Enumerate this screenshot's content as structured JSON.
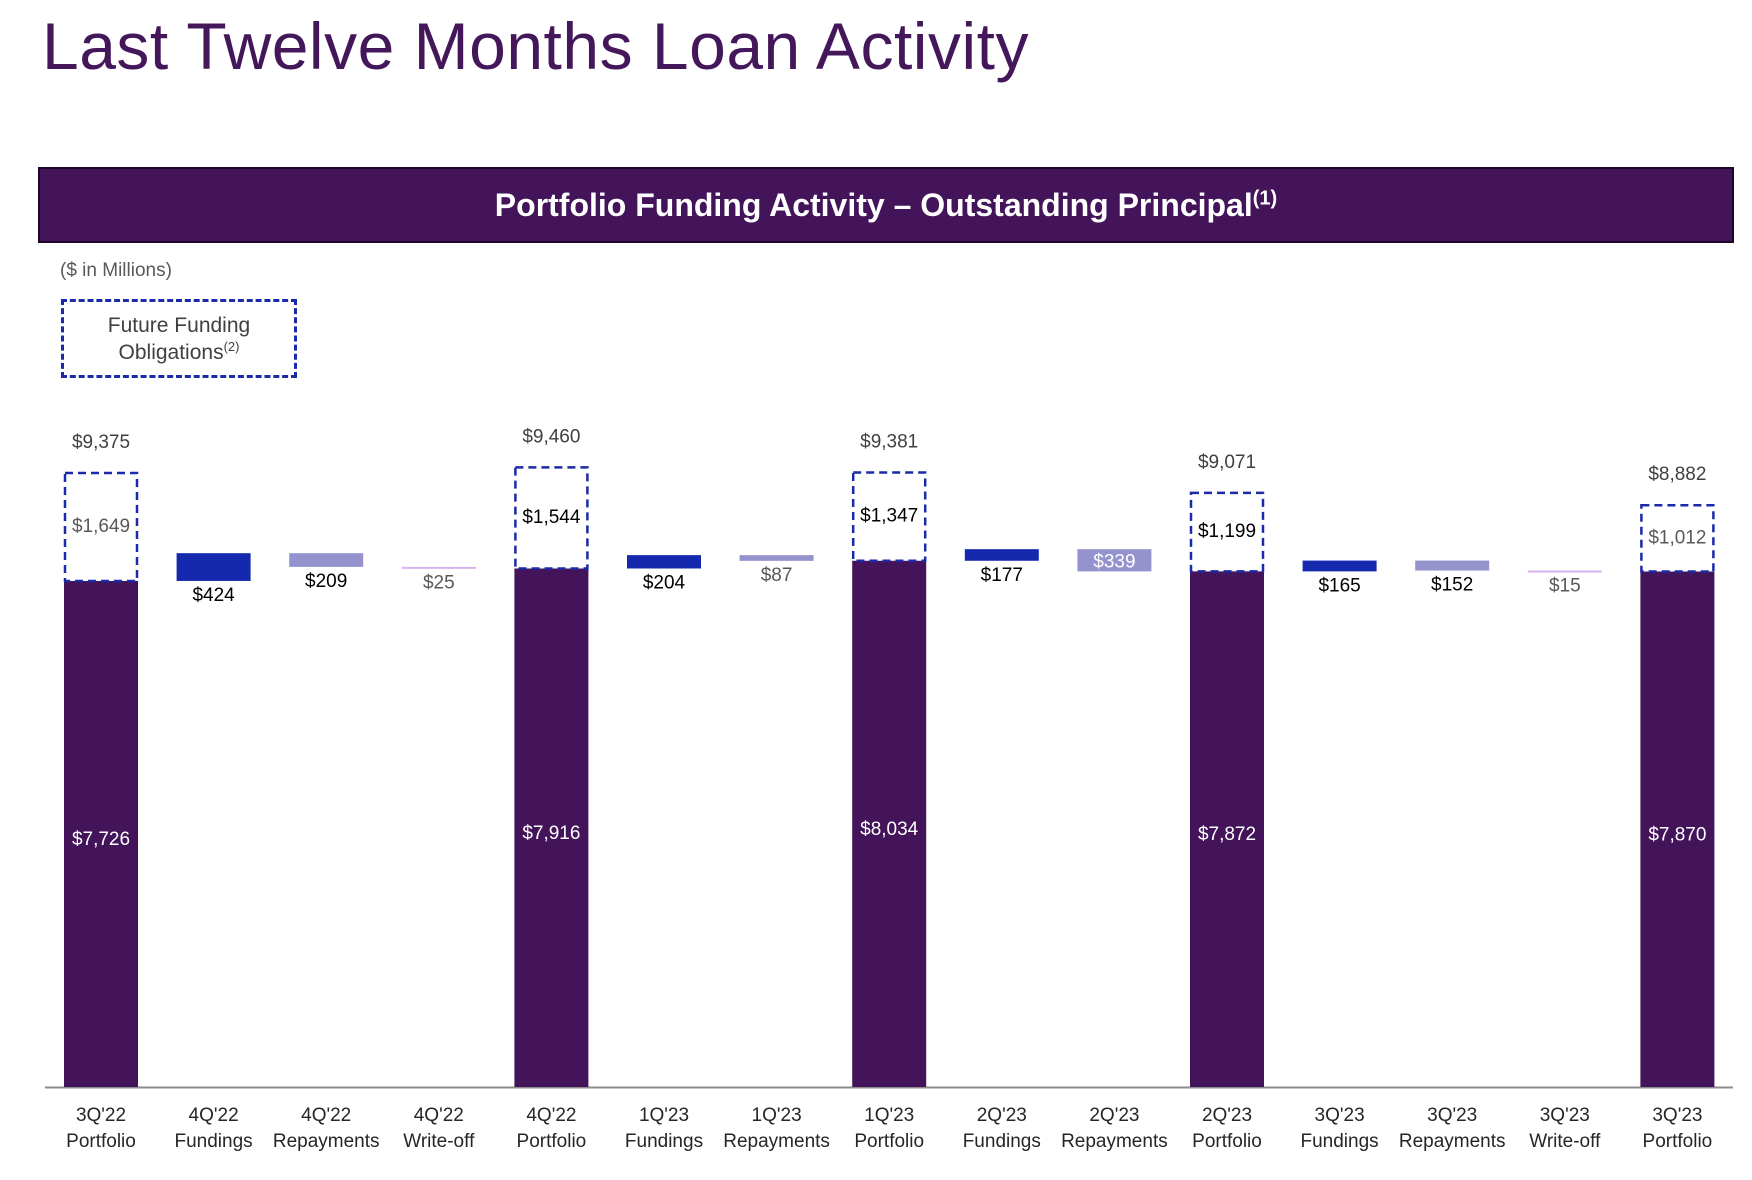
{
  "page": {
    "title": "Last Twelve Months Loan Activity",
    "chart_header": "Portfolio Funding Activity – Outstanding Principal",
    "chart_header_note": "(1)",
    "units_label": "($ in Millions)",
    "legend_label": "Future Funding Obligations",
    "legend_note": "(2)"
  },
  "colors": {
    "title": "#44175a",
    "portfolio": "#44145a",
    "fundings": "#1429ad",
    "repayments": "#9593cd",
    "writeoff": "#d6b3ee",
    "future_funding_border": "#1b2aa8"
  },
  "chart_data": {
    "type": "bar",
    "subtype": "waterfall",
    "units": "$ in Millions",
    "legend": [
      "Future Funding Obligations"
    ],
    "grid": false,
    "categories": [
      "3Q'22 Portfolio",
      "4Q'22 Fundings",
      "4Q'22 Repayments",
      "4Q'22 Write-off",
      "4Q'22 Portfolio",
      "1Q'23 Fundings",
      "1Q'23 Repayments",
      "1Q'23 Portfolio",
      "2Q'23 Fundings",
      "2Q'23 Repayments",
      "2Q'23 Portfolio",
      "3Q'23 Fundings",
      "3Q'23 Repayments",
      "3Q'23 Write-off",
      "3Q'23 Portfolio"
    ],
    "bars": [
      {
        "line1": "3Q'22",
        "line2": "Portfolio",
        "kind": "portfolio",
        "value": 7726,
        "label": "$7,726",
        "future": 1649,
        "future_label": "$1,649",
        "total_label": "$9,375"
      },
      {
        "line1": "4Q'22",
        "line2": "Fundings",
        "kind": "fundings",
        "value": 424,
        "label": "$424"
      },
      {
        "line1": "4Q'22",
        "line2": "Repayments",
        "kind": "repayments",
        "value": 209,
        "label": "$209"
      },
      {
        "line1": "4Q'22",
        "line2": "Write-off",
        "kind": "writeoff",
        "value": 25,
        "label": "$25"
      },
      {
        "line1": "4Q'22",
        "line2": "Portfolio",
        "kind": "portfolio",
        "value": 7916,
        "label": "$7,916",
        "future": 1544,
        "future_label": "$1,544",
        "total_label": "$9,460"
      },
      {
        "line1": "1Q'23",
        "line2": "Fundings",
        "kind": "fundings",
        "value": 204,
        "label": "$204"
      },
      {
        "line1": "1Q'23",
        "line2": "Repayments",
        "kind": "repayments",
        "value": 87,
        "label": "$87"
      },
      {
        "line1": "1Q'23",
        "line2": "Portfolio",
        "kind": "portfolio",
        "value": 8034,
        "label": "$8,034",
        "future": 1347,
        "future_label": "$1,347",
        "total_label": "$9,381"
      },
      {
        "line1": "2Q'23",
        "line2": "Fundings",
        "kind": "fundings",
        "value": 177,
        "label": "$177"
      },
      {
        "line1": "2Q'23",
        "line2": "Repayments",
        "kind": "repayments",
        "value": 339,
        "label": "$339"
      },
      {
        "line1": "2Q'23",
        "line2": "Portfolio",
        "kind": "portfolio",
        "value": 7872,
        "label": "$7,872",
        "future": 1199,
        "future_label": "$1,199",
        "total_label": "$9,071"
      },
      {
        "line1": "3Q'23",
        "line2": "Fundings",
        "kind": "fundings",
        "value": 165,
        "label": "$165"
      },
      {
        "line1": "3Q'23",
        "line2": "Repayments",
        "kind": "repayments",
        "value": 152,
        "label": "$152"
      },
      {
        "line1": "3Q'23",
        "line2": "Write-off",
        "kind": "writeoff",
        "value": 15,
        "label": "$15"
      },
      {
        "line1": "3Q'23",
        "line2": "Portfolio",
        "kind": "portfolio",
        "value": 7870,
        "label": "$7,870",
        "future": 1012,
        "future_label": "$1,012",
        "total_label": "$8,882"
      }
    ]
  }
}
